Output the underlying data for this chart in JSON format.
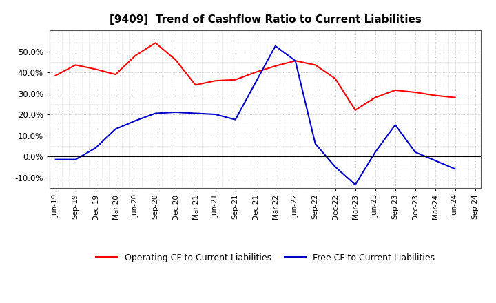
{
  "title": "[9409]  Trend of Cashflow Ratio to Current Liabilities",
  "x_labels": [
    "Jun-19",
    "Sep-19",
    "Dec-19",
    "Mar-20",
    "Jun-20",
    "Sep-20",
    "Dec-20",
    "Mar-21",
    "Jun-21",
    "Sep-21",
    "Dec-21",
    "Mar-22",
    "Jun-22",
    "Sep-22",
    "Dec-22",
    "Mar-23",
    "Jun-23",
    "Sep-23",
    "Dec-23",
    "Mar-24",
    "Jun-24",
    "Sep-24"
  ],
  "operating_cf": [
    38.5,
    43.5,
    41.5,
    39.0,
    48.0,
    54.0,
    46.0,
    34.0,
    36.0,
    36.5,
    40.0,
    43.0,
    45.5,
    43.5,
    37.0,
    22.0,
    28.0,
    31.5,
    30.5,
    29.0,
    28.0,
    null
  ],
  "free_cf": [
    -1.5,
    -1.5,
    4.0,
    13.0,
    17.0,
    20.5,
    21.0,
    20.5,
    20.0,
    17.5,
    35.0,
    52.5,
    45.5,
    6.0,
    -5.0,
    -13.5,
    2.0,
    15.0,
    2.0,
    -2.0,
    -6.0,
    null
  ],
  "ylim": [
    -15,
    60
  ],
  "yticks": [
    -10,
    0,
    10,
    20,
    30,
    40,
    50
  ],
  "operating_color": "#FF0000",
  "free_color": "#0000CC",
  "background_color": "#FFFFFF",
  "plot_bg_color": "#FFFFFF",
  "grid_color": "#888888",
  "legend_op": "Operating CF to Current Liabilities",
  "legend_free": "Free CF to Current Liabilities"
}
